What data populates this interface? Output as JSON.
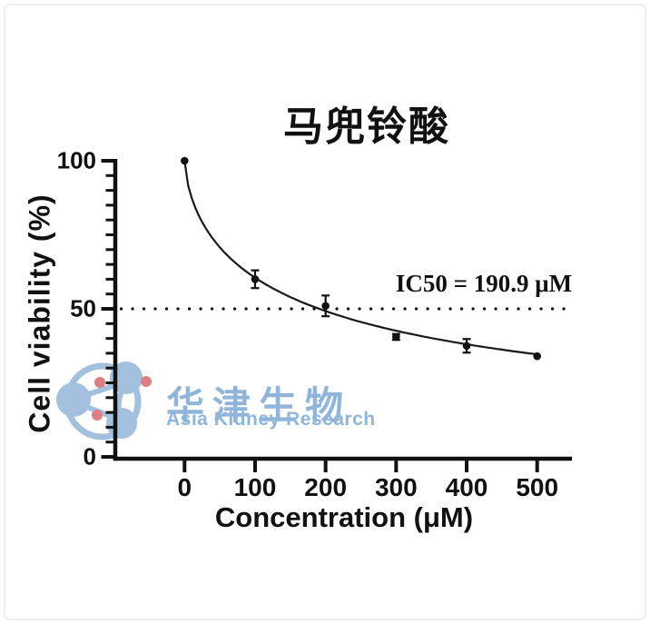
{
  "window": {
    "background": "#ffffff",
    "border_color": "#eeeeee"
  },
  "chart_data": {
    "type": "scatter",
    "title": "马兜铃酸",
    "xlabel": "Concentration (μM)",
    "ylabel": "Cell viability (%)",
    "x": [
      0,
      100,
      200,
      300,
      400,
      500
    ],
    "series": [
      {
        "name": "cell-viability",
        "values": [
          100,
          60,
          51,
          40.5,
          37.5,
          34
        ],
        "errors": [
          0,
          3,
          3.5,
          1,
          2.3,
          0.5
        ]
      }
    ],
    "fit_curve": {
      "model": "Y = 100 / (1 + (x/IC50)^h)",
      "ic50": 190.9,
      "hill": 0.66,
      "x_range": [
        0,
        500
      ]
    },
    "annotation": "IC50 = 190.9 μM",
    "reference_line_y": 50,
    "xticks": [
      0,
      100,
      200,
      300,
      400,
      500
    ],
    "yticks": [
      0,
      50,
      100
    ],
    "y_minor_tick_step": 5,
    "xlim": [
      0,
      500
    ],
    "ylim": [
      0,
      100
    ],
    "grid": false,
    "legend": "none",
    "axis_color": "#111111",
    "marker_color": "#111111",
    "line_color": "#1a1a1a"
  },
  "watermark": {
    "cn_text": "华津生物",
    "en_text": "Asia Kidney Research",
    "text_color": "#8fb5da",
    "logo_blue": "#a3c0de",
    "logo_red": "#dd7e82"
  }
}
